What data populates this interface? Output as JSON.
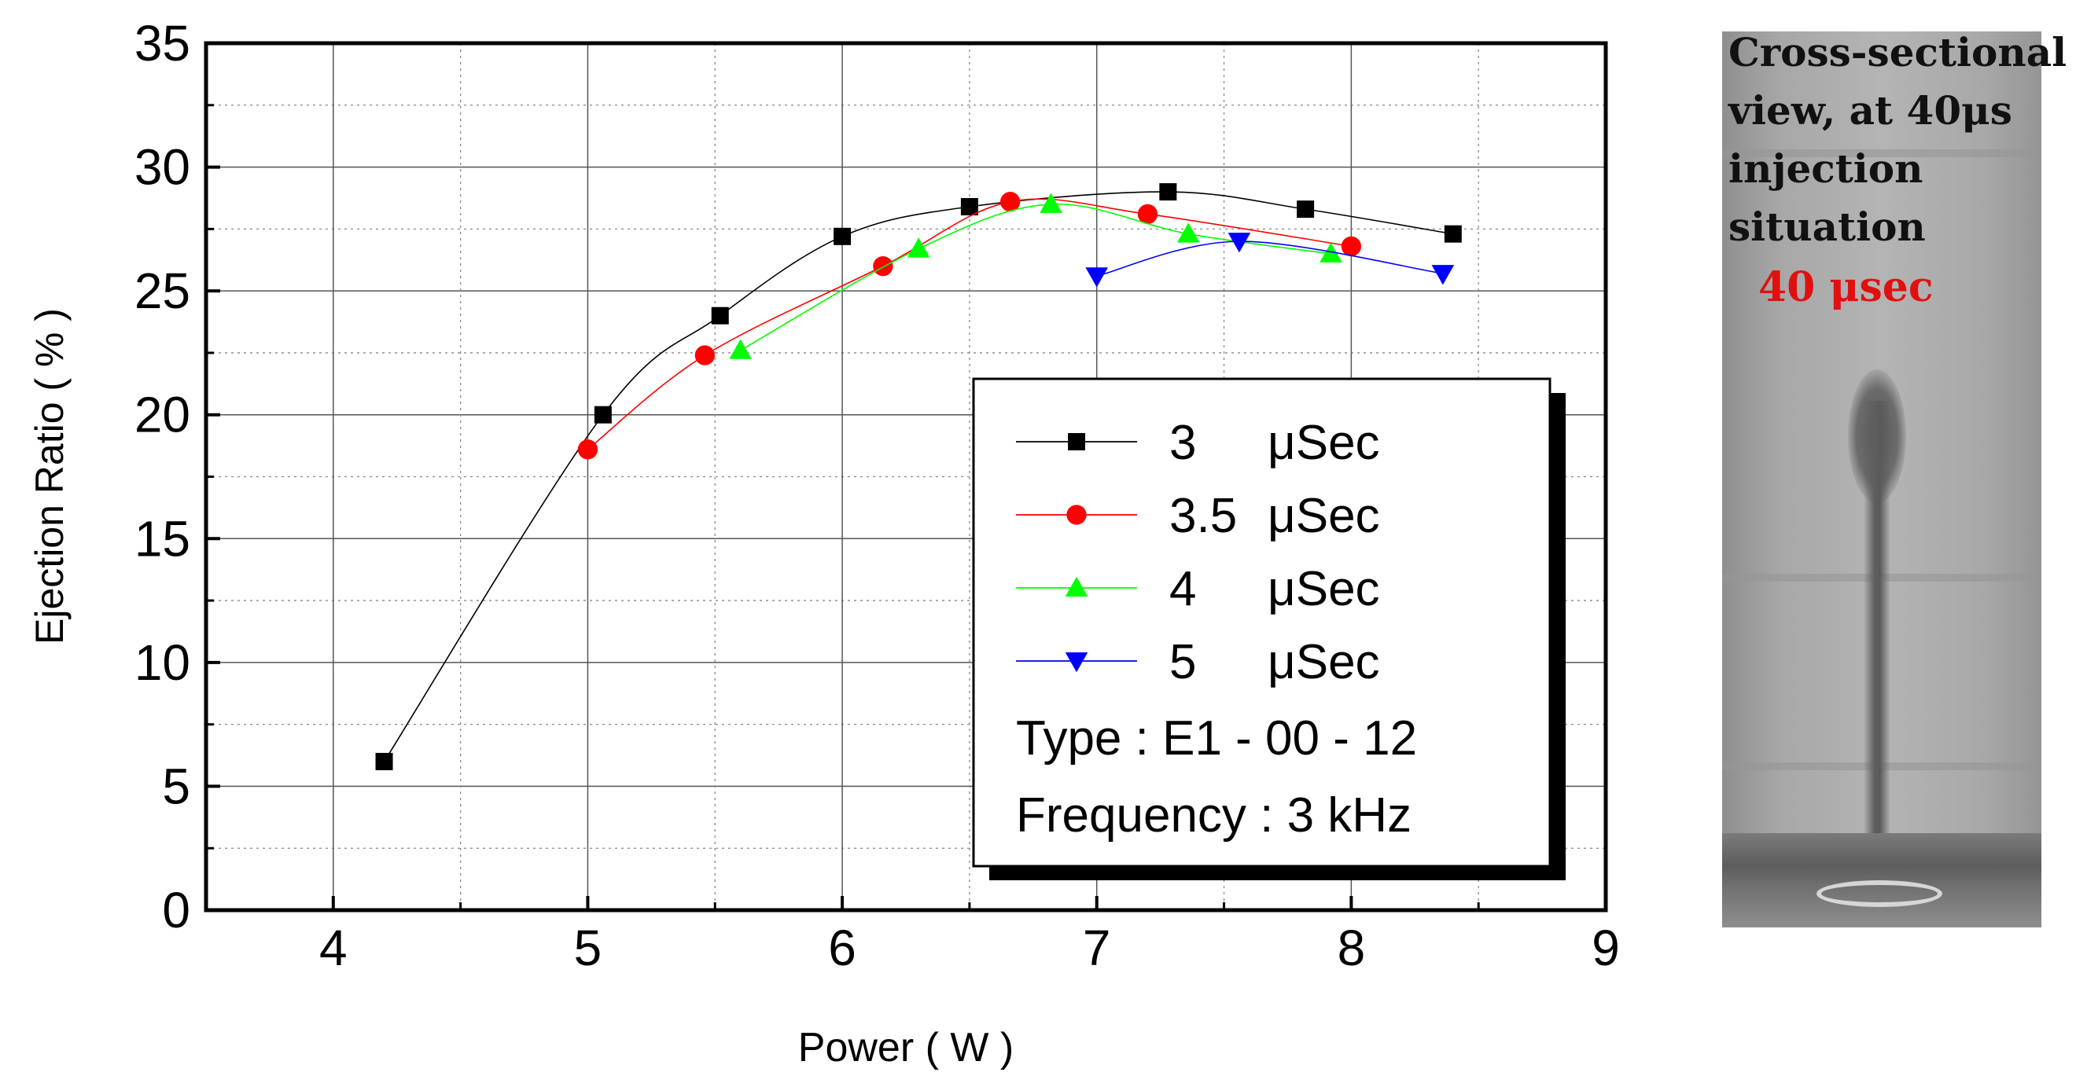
{
  "chart_data": {
    "type": "scatter",
    "xlabel": "Power ( W )",
    "ylabel": "Ejection Ratio ( % )",
    "xlim": [
      3.5,
      9
    ],
    "ylim": [
      0,
      35
    ],
    "xticks": [
      4,
      5,
      6,
      7,
      8,
      9
    ],
    "yticks": [
      0,
      5,
      10,
      15,
      20,
      25,
      30,
      35
    ],
    "grid": true,
    "legend_position": "bottom-right",
    "series": [
      {
        "name": "3",
        "unit": "μSec",
        "marker": "square",
        "color": "#000000",
        "x": [
          4.2,
          5.06,
          5.52,
          6.0,
          6.5,
          7.28,
          7.82,
          8.4
        ],
        "y": [
          6.0,
          20.0,
          24.0,
          27.2,
          28.4,
          29.0,
          28.3,
          27.3
        ]
      },
      {
        "name": "3.5",
        "unit": "μSec",
        "marker": "circle",
        "color": "#ff0000",
        "x": [
          5.0,
          5.46,
          6.16,
          6.66,
          7.2,
          8.0
        ],
        "y": [
          18.6,
          22.4,
          26.0,
          28.6,
          28.1,
          26.8
        ]
      },
      {
        "name": "4",
        "unit": "μSec",
        "marker": "triangle-up",
        "color": "#00ff00",
        "x": [
          5.6,
          6.3,
          6.82,
          7.36,
          7.92
        ],
        "y": [
          22.6,
          26.7,
          28.5,
          27.3,
          26.5
        ]
      },
      {
        "name": "5",
        "unit": "μSec",
        "marker": "triangle-down",
        "color": "#0000ff",
        "x": [
          7.0,
          7.56,
          8.36
        ],
        "y": [
          25.6,
          27.0,
          25.7
        ]
      }
    ],
    "annotations": [
      "Type : E1 - 00 - 12",
      "Frequency : 3 kHz"
    ]
  },
  "image_panel": {
    "caption": "Cross-sectional view, at 40μs injection situation",
    "time_label": "40 μsec"
  }
}
